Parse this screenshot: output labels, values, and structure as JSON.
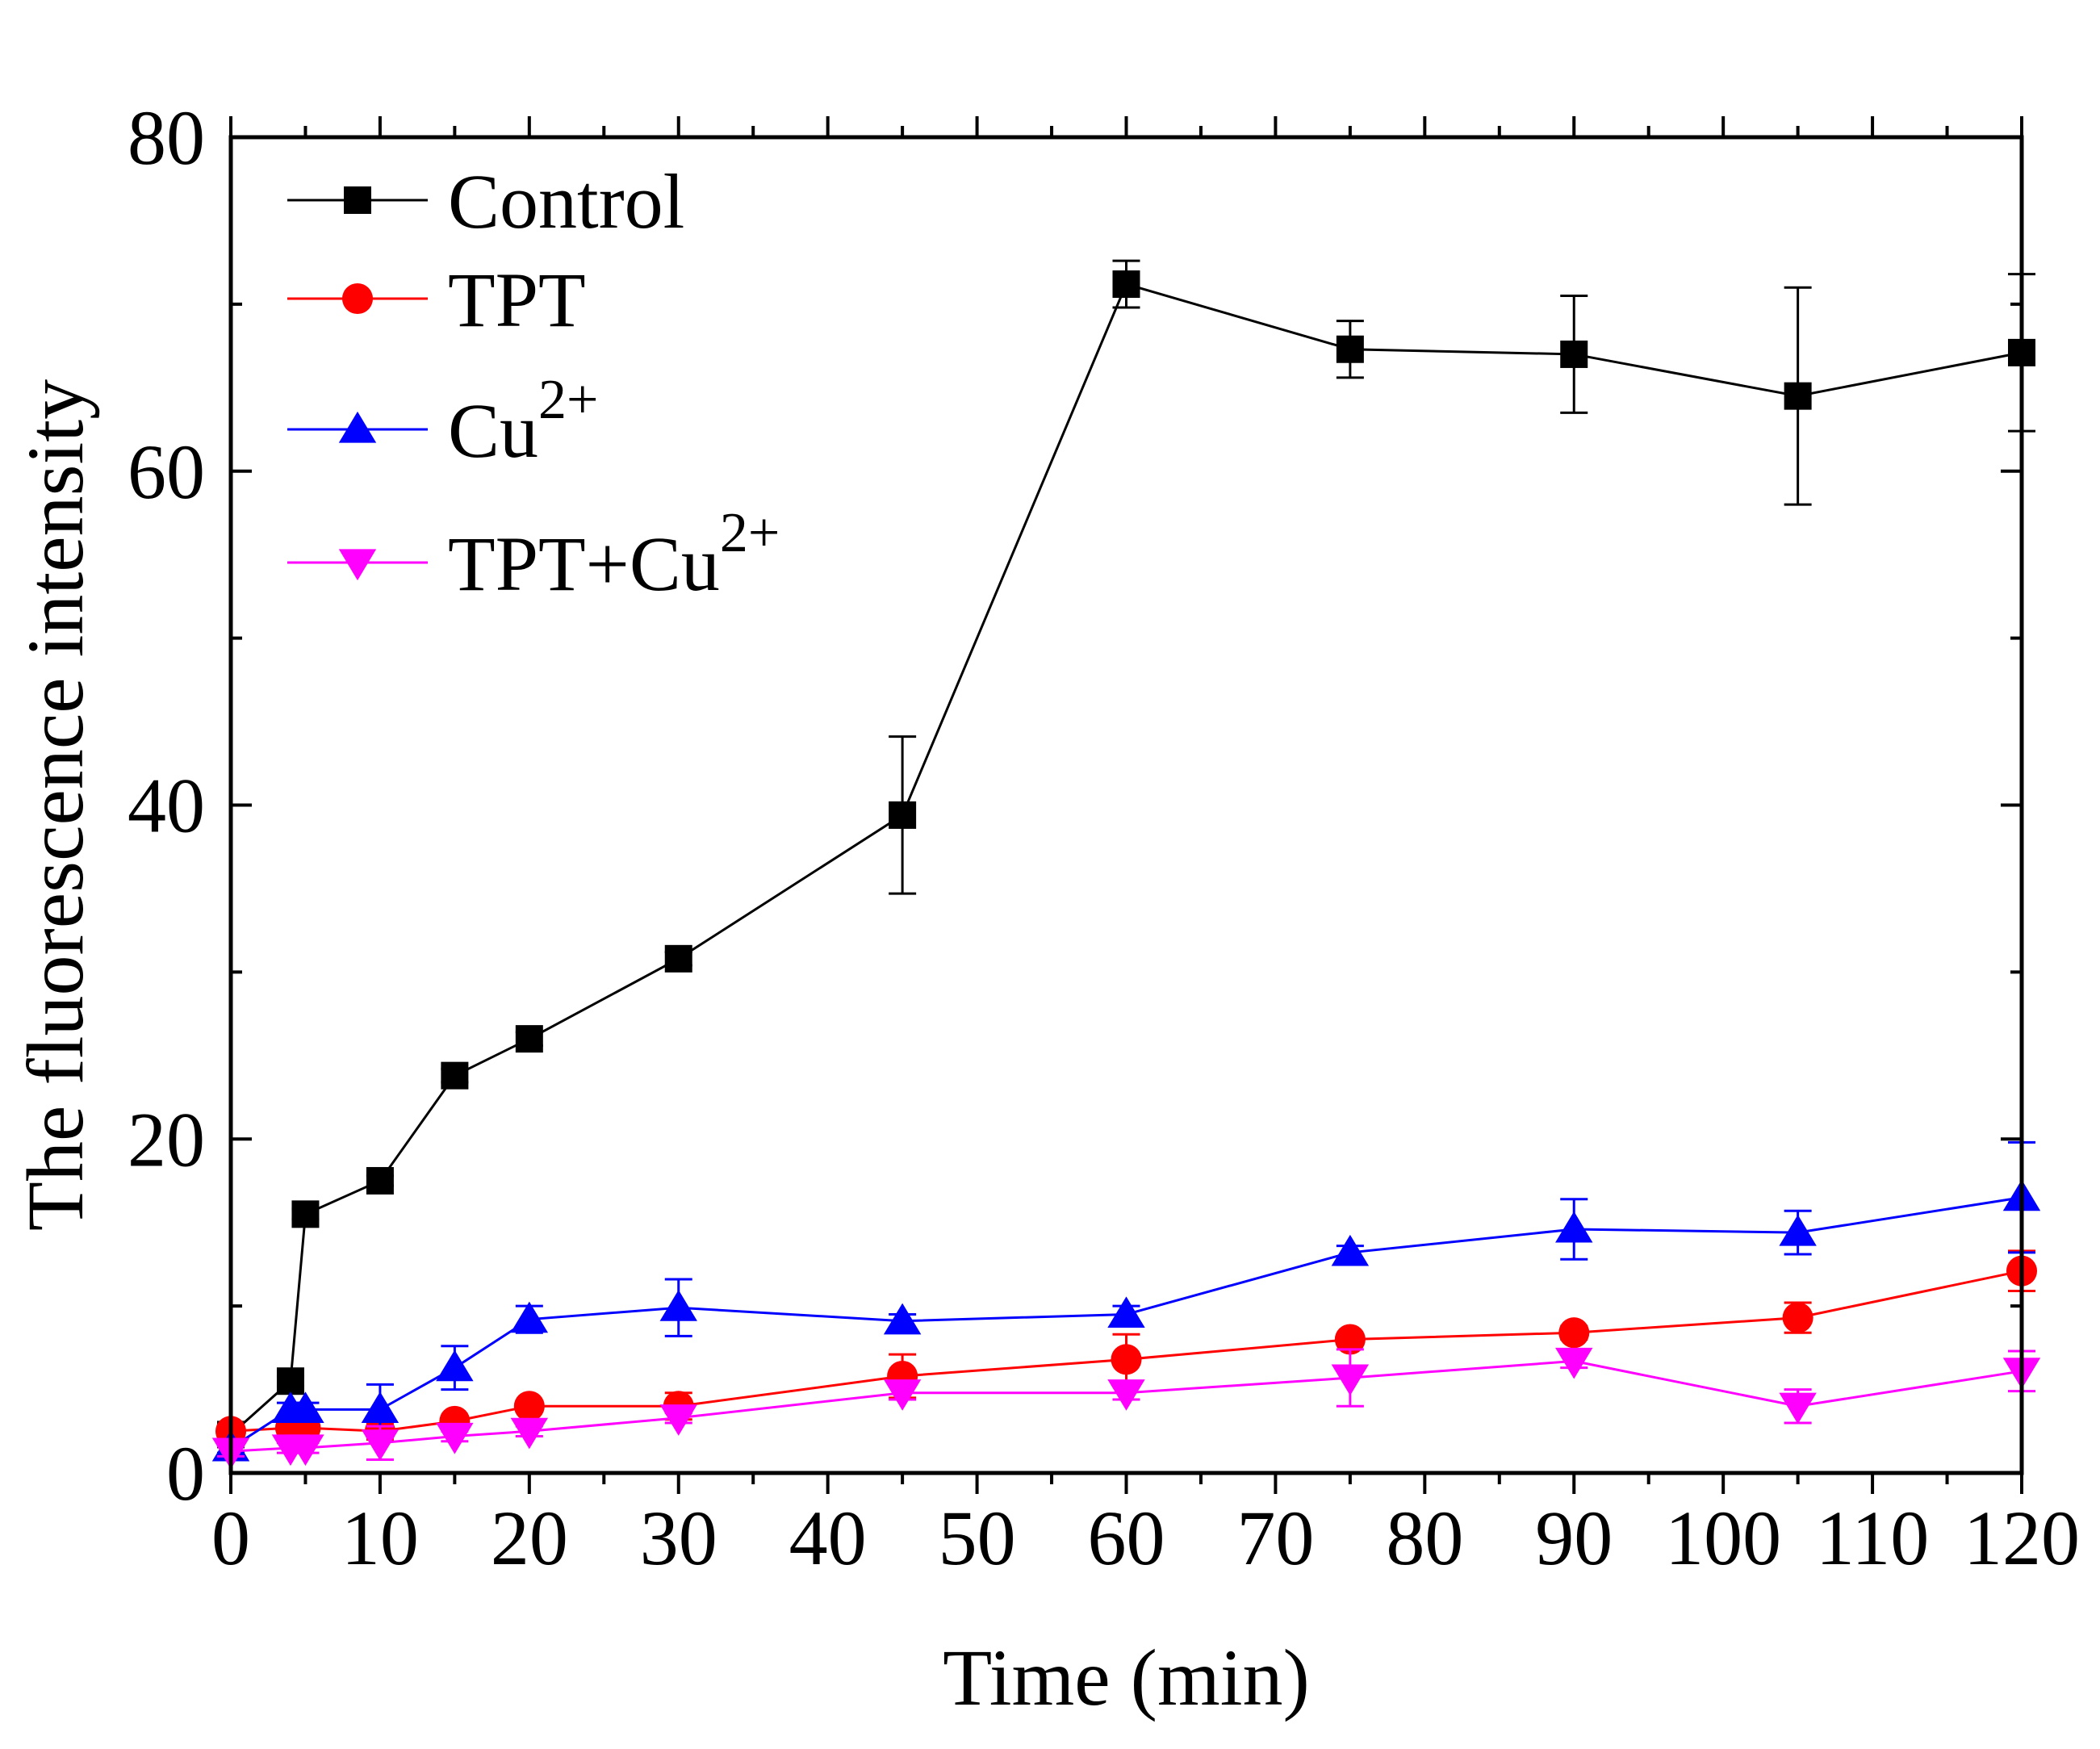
{
  "chart_data": {
    "type": "line",
    "xlabel": "Time (min)",
    "ylabel": "The fluorescence intensity",
    "xlim": [
      0,
      120
    ],
    "ylim": [
      0,
      80
    ],
    "xticks": [
      0,
      10,
      20,
      30,
      40,
      50,
      60,
      70,
      80,
      90,
      100,
      110,
      120
    ],
    "yticks": [
      0,
      20,
      40,
      60,
      80
    ],
    "legend_position": "top-left",
    "series": [
      {
        "name": "Control",
        "legend_base": "Control",
        "legend_sup": "",
        "color": "#000000",
        "marker": "square",
        "x": [
          0,
          4,
          5,
          10,
          15,
          20,
          30,
          45,
          60,
          75,
          90,
          105,
          120
        ],
        "y": [
          2.3,
          5.5,
          15.5,
          17.5,
          23.8,
          26.0,
          30.8,
          39.4,
          71.2,
          67.3,
          67.0,
          64.5,
          67.1
        ],
        "err": [
          0.3,
          0.3,
          0.3,
          0.3,
          0.4,
          0.4,
          0.4,
          4.7,
          1.4,
          1.7,
          3.5,
          6.5,
          4.7
        ]
      },
      {
        "name": "TPT",
        "legend_base": "TPT",
        "legend_sup": "",
        "color": "#ff0000",
        "marker": "circle",
        "x": [
          0,
          4,
          5,
          10,
          15,
          20,
          30,
          45,
          60,
          75,
          90,
          105,
          120
        ],
        "y": [
          2.5,
          2.7,
          2.7,
          2.5,
          3.1,
          4.0,
          4.0,
          5.8,
          6.8,
          8.0,
          8.4,
          9.3,
          12.1
        ],
        "err": [
          0.3,
          0.4,
          0.3,
          0.5,
          0.3,
          0.3,
          0.8,
          1.3,
          1.5,
          0.3,
          0.4,
          0.9,
          1.2
        ]
      },
      {
        "name": "Cu2+",
        "legend_base": "Cu",
        "legend_sup": "2+",
        "color": "#0000ff",
        "marker": "triangle-up",
        "x": [
          0,
          4,
          5,
          10,
          15,
          20,
          30,
          45,
          60,
          75,
          90,
          105,
          120
        ],
        "y": [
          1.5,
          3.8,
          3.8,
          3.8,
          6.3,
          9.2,
          9.9,
          9.1,
          9.5,
          13.2,
          14.6,
          14.4,
          16.5
        ],
        "err": [
          0.3,
          0.4,
          0.4,
          1.5,
          1.3,
          0.8,
          1.7,
          0.4,
          0.5,
          0.4,
          1.8,
          1.3,
          3.3
        ]
      },
      {
        "name": "TPT+Cu2+",
        "legend_base": "TPT+Cu",
        "legend_sup": "2+",
        "color": "#ff00ff",
        "marker": "triangle-down",
        "x": [
          0,
          4,
          5,
          10,
          15,
          20,
          30,
          45,
          60,
          75,
          90,
          105,
          120
        ],
        "y": [
          1.3,
          1.5,
          1.5,
          1.8,
          2.2,
          2.5,
          3.3,
          4.8,
          4.8,
          5.7,
          6.7,
          4.0,
          6.1
        ],
        "err": [
          0.3,
          0.3,
          0.3,
          1.0,
          0.3,
          0.3,
          0.3,
          0.4,
          0.4,
          1.7,
          0.4,
          1.0,
          1.2
        ]
      }
    ]
  }
}
